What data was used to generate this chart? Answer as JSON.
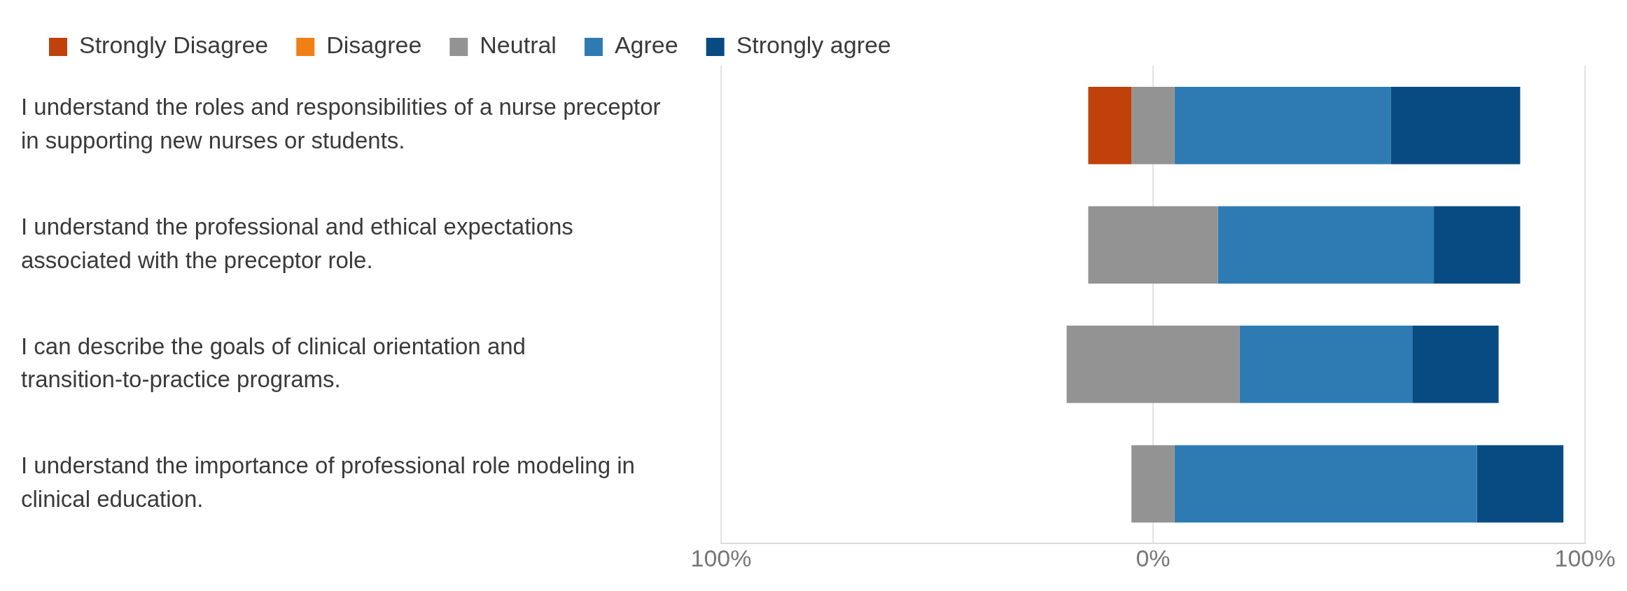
{
  "chart_data": {
    "type": "bar",
    "orientation": "horizontal",
    "categories": [
      "I understand the roles and responsibilities of a nurse preceptor in supporting new nurses or students.",
      "I understand the professional and ethical expectations associated with the preceptor role.",
      "I can describe the goals of clinical orientation and transition-to-practice programs.",
      "I understand the importance of professional role modeling in clinical education."
    ],
    "series": [
      {
        "name": "Strongly Disagree",
        "color": "#c0410a",
        "base": [
          -15,
          null,
          null,
          null
        ],
        "values": [
          10,
          null,
          null,
          null
        ]
      },
      {
        "name": "Disagree",
        "color": "#f07f16",
        "base": [
          null,
          null,
          null,
          null
        ],
        "values": [
          null,
          null,
          null,
          null
        ]
      },
      {
        "name": "Neutral",
        "color": "#939393",
        "base": [
          -5,
          -15,
          -20,
          -5
        ],
        "values": [
          10,
          30,
          40,
          10
        ]
      },
      {
        "name": "Agree",
        "color": "#2e7bb4",
        "base": [
          5,
          15,
          20,
          5
        ],
        "values": [
          50,
          50,
          40,
          70
        ]
      },
      {
        "name": "Strongly agree",
        "color": "#084b82",
        "base": [
          55,
          65,
          60,
          75
        ],
        "values": [
          30,
          20,
          20,
          20
        ]
      }
    ],
    "xlim": [
      -100,
      100
    ],
    "xticks": [
      {
        "value": -100,
        "label": "100%"
      },
      {
        "value": 0,
        "label": "0%"
      },
      {
        "value": 100,
        "label": "100%"
      }
    ],
    "grid": "x",
    "legend": "top left"
  }
}
